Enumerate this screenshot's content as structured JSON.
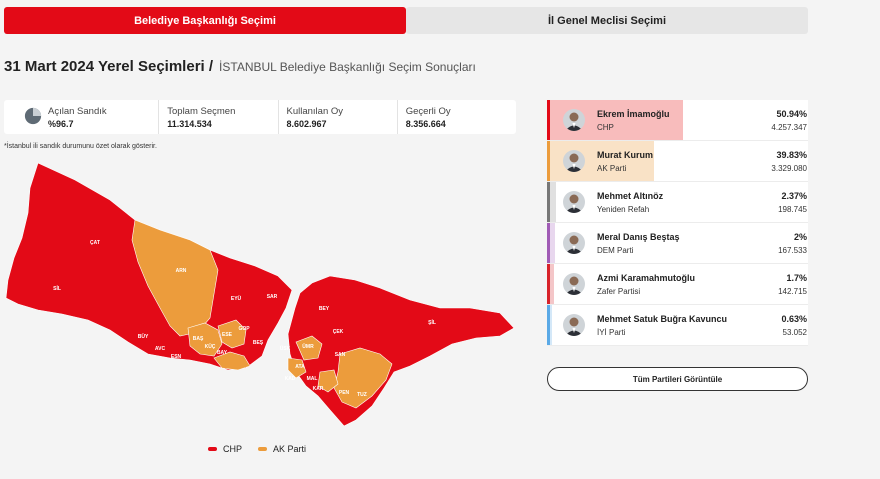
{
  "tabs": [
    {
      "label": "Belediye Başkanlığı Seçimi",
      "active": true
    },
    {
      "label": "İl Genel Meclisi Seçimi",
      "active": false
    }
  ],
  "title": {
    "main": "31 Mart 2024 Yerel Seçimleri /",
    "sub": "İSTANBUL Belediye Başkanlığı Seçim Sonuçları"
  },
  "stats": [
    {
      "label": "Açılan Sandık",
      "value": "%96.7"
    },
    {
      "label": "Toplam Seçmen",
      "value": "11.314.534"
    },
    {
      "label": "Kullanılan Oy",
      "value": "8.602.967"
    },
    {
      "label": "Geçerli Oy",
      "value": "8.356.664"
    }
  ],
  "note": "*İstanbul ili sandık durumunu özet olarak gösterir.",
  "colors": {
    "chp": "#e30a17",
    "akp": "#ec9c3c",
    "chp_fill": "#f7b5b5",
    "akp_fill": "#f8dfc0"
  },
  "legend": [
    {
      "label": "CHP",
      "color": "#e30a17"
    },
    {
      "label": "AK Parti",
      "color": "#ec9c3c"
    }
  ],
  "districts": [
    "ÇAT",
    "SİL",
    "ARN",
    "EYÜ",
    "SAR",
    "BEY",
    "ŞİL",
    "ÇEK",
    "BÜY",
    "BAŞ",
    "ESE",
    "GOP",
    "ÜSK",
    "SAN",
    "ATA",
    "ÜMR",
    "KAD",
    "MAL",
    "KAR",
    "PEN",
    "TUZ",
    "BAY",
    "ESN",
    "AVC",
    "KÜÇ",
    "BEŞ"
  ],
  "candidates": [
    {
      "name": "Ekrem İmamoğlu",
      "party": "CHP",
      "percent": "50.94%",
      "share": 0.5094,
      "votes": "4.257.347",
      "bar_color": "#e30a17",
      "fill_color": "#f7b5b5"
    },
    {
      "name": "Murat Kurum",
      "party": "AK Parti",
      "percent": "39.83%",
      "share": 0.3983,
      "votes": "3.329.080",
      "bar_color": "#ec9c3c",
      "fill_color": "#f8dfc0"
    },
    {
      "name": "Mehmet Altınöz",
      "party": "Yeniden Refah",
      "percent": "2.37%",
      "share": 0.0237,
      "votes": "198.745",
      "bar_color": "#777777",
      "fill_color": "#dddddd"
    },
    {
      "name": "Meral Danış Beştaş",
      "party": "DEM Parti",
      "percent": "2%",
      "share": 0.02,
      "votes": "167.533",
      "bar_color": "#a05bb5",
      "fill_color": "#e6d3ec"
    },
    {
      "name": "Azmi Karamahmutoğlu",
      "party": "Zafer Partisi",
      "percent": "1.7%",
      "share": 0.017,
      "votes": "142.715",
      "bar_color": "#d8222a",
      "fill_color": "#f3c0c2"
    },
    {
      "name": "Mehmet Satuk Buğra Kavuncu",
      "party": "İYİ Parti",
      "percent": "0.63%",
      "share": 0.0063,
      "votes": "53.052",
      "bar_color": "#5aa9e6",
      "fill_color": "#cfe5f7"
    }
  ],
  "all_parties_button": "Tüm Partileri Görüntüle"
}
